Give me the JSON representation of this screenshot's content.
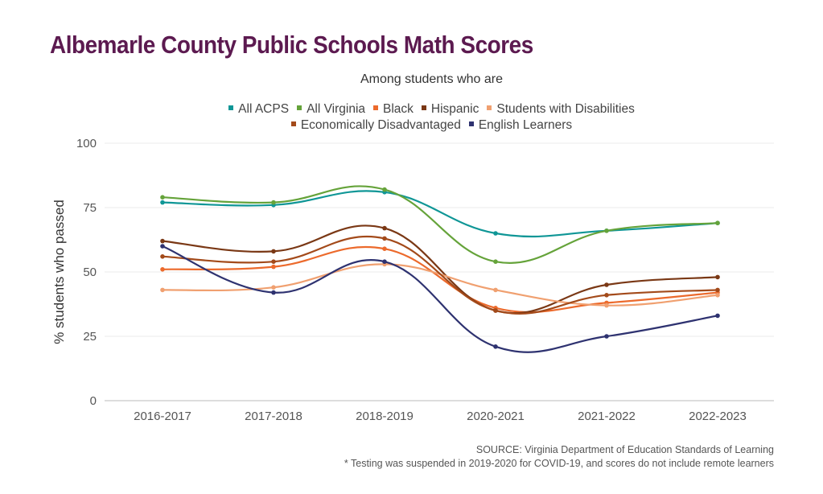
{
  "chart_data": {
    "type": "line",
    "title": "Albemarle County Public Schools Math Scores",
    "subtitle": "Among students who are",
    "xlabel": "",
    "ylabel": "% students who passed",
    "ylim": [
      0,
      100
    ],
    "yticks": [
      "0",
      "25",
      "50",
      "75",
      "100"
    ],
    "grid": true,
    "legend": "top",
    "categories": [
      "2016-2017",
      "2017-2018",
      "2018-2019",
      "2020-2021",
      "2021-2022",
      "2022-2023"
    ],
    "series": [
      {
        "name": "All ACPS",
        "color": "#0f9696",
        "values": [
          77,
          76,
          81,
          65,
          66,
          69
        ]
      },
      {
        "name": "All Virginia",
        "color": "#65a33a",
        "values": [
          79,
          77,
          82,
          54,
          66,
          69
        ]
      },
      {
        "name": "Black",
        "color": "#ec6a2c",
        "values": [
          51,
          52,
          59,
          36,
          38,
          42
        ]
      },
      {
        "name": "Hispanic",
        "color": "#7a3815",
        "values": [
          62,
          58,
          67,
          35,
          45,
          48
        ]
      },
      {
        "name": "Students with Disabilities",
        "color": "#f0a070",
        "values": [
          43,
          44,
          53,
          43,
          37,
          41
        ]
      },
      {
        "name": "Economically Disadvantaged",
        "color": "#a34a1a",
        "values": [
          56,
          54,
          63,
          35,
          41,
          43
        ]
      },
      {
        "name": "English Learners",
        "color": "#2e3270",
        "values": [
          60,
          42,
          54,
          21,
          25,
          33
        ]
      }
    ],
    "source": "SOURCE: Virginia Department of Education Standards of Learning",
    "note": "* Testing was suspended in 2019-2020 for COVID-19, and scores do not include remote learners"
  }
}
